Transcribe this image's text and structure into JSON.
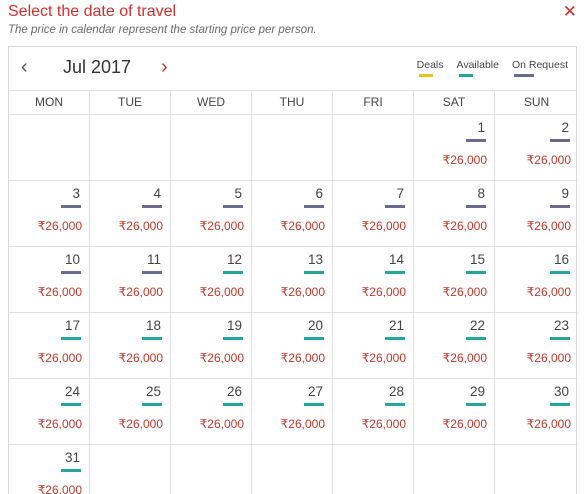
{
  "header": {
    "title": "Select the date of travel",
    "subtitle": "The price in calendar represent the starting price per person.",
    "close_symbol": "✕"
  },
  "calendar": {
    "prev_symbol": "‹",
    "next_symbol": "›",
    "month_label": "Jul 2017",
    "legend": [
      {
        "label": "Deals",
        "color": "#e8c51a",
        "key": "deals"
      },
      {
        "label": "Available",
        "color": "#26a69a",
        "key": "available"
      },
      {
        "label": "On Request",
        "color": "#6c6a8f",
        "key": "onrequest"
      }
    ],
    "weekdays": [
      "MON",
      "TUE",
      "WED",
      "THU",
      "FRI",
      "SAT",
      "SUN"
    ],
    "leading_empty": 5,
    "days": [
      {
        "day": "1",
        "price": "₹26,000",
        "status": "onrequest"
      },
      {
        "day": "2",
        "price": "₹26,000",
        "status": "onrequest"
      },
      {
        "day": "3",
        "price": "₹26,000",
        "status": "onrequest"
      },
      {
        "day": "4",
        "price": "₹26,000",
        "status": "onrequest"
      },
      {
        "day": "5",
        "price": "₹26,000",
        "status": "onrequest"
      },
      {
        "day": "6",
        "price": "₹26,000",
        "status": "onrequest"
      },
      {
        "day": "7",
        "price": "₹26,000",
        "status": "onrequest"
      },
      {
        "day": "8",
        "price": "₹26,000",
        "status": "onrequest"
      },
      {
        "day": "9",
        "price": "₹26,000",
        "status": "onrequest"
      },
      {
        "day": "10",
        "price": "₹26,000",
        "status": "onrequest"
      },
      {
        "day": "11",
        "price": "₹26,000",
        "status": "onrequest"
      },
      {
        "day": "12",
        "price": "₹26,000",
        "status": "available"
      },
      {
        "day": "13",
        "price": "₹26,000",
        "status": "available"
      },
      {
        "day": "14",
        "price": "₹26,000",
        "status": "available"
      },
      {
        "day": "15",
        "price": "₹26,000",
        "status": "available"
      },
      {
        "day": "16",
        "price": "₹26,000",
        "status": "available"
      },
      {
        "day": "17",
        "price": "₹26,000",
        "status": "available"
      },
      {
        "day": "18",
        "price": "₹26,000",
        "status": "available"
      },
      {
        "day": "19",
        "price": "₹26,000",
        "status": "available"
      },
      {
        "day": "20",
        "price": "₹26,000",
        "status": "available"
      },
      {
        "day": "21",
        "price": "₹26,000",
        "status": "available"
      },
      {
        "day": "22",
        "price": "₹26,000",
        "status": "available"
      },
      {
        "day": "23",
        "price": "₹26,000",
        "status": "available"
      },
      {
        "day": "24",
        "price": "₹26,000",
        "status": "available"
      },
      {
        "day": "25",
        "price": "₹26,000",
        "status": "available"
      },
      {
        "day": "26",
        "price": "₹26,000",
        "status": "available"
      },
      {
        "day": "27",
        "price": "₹26,000",
        "status": "available"
      },
      {
        "day": "28",
        "price": "₹26,000",
        "status": "available"
      },
      {
        "day": "29",
        "price": "₹26,000",
        "status": "available"
      },
      {
        "day": "30",
        "price": "₹26,000",
        "status": "available"
      },
      {
        "day": "31",
        "price": "₹26,000",
        "status": "available"
      }
    ],
    "trailing_empty": 6
  }
}
